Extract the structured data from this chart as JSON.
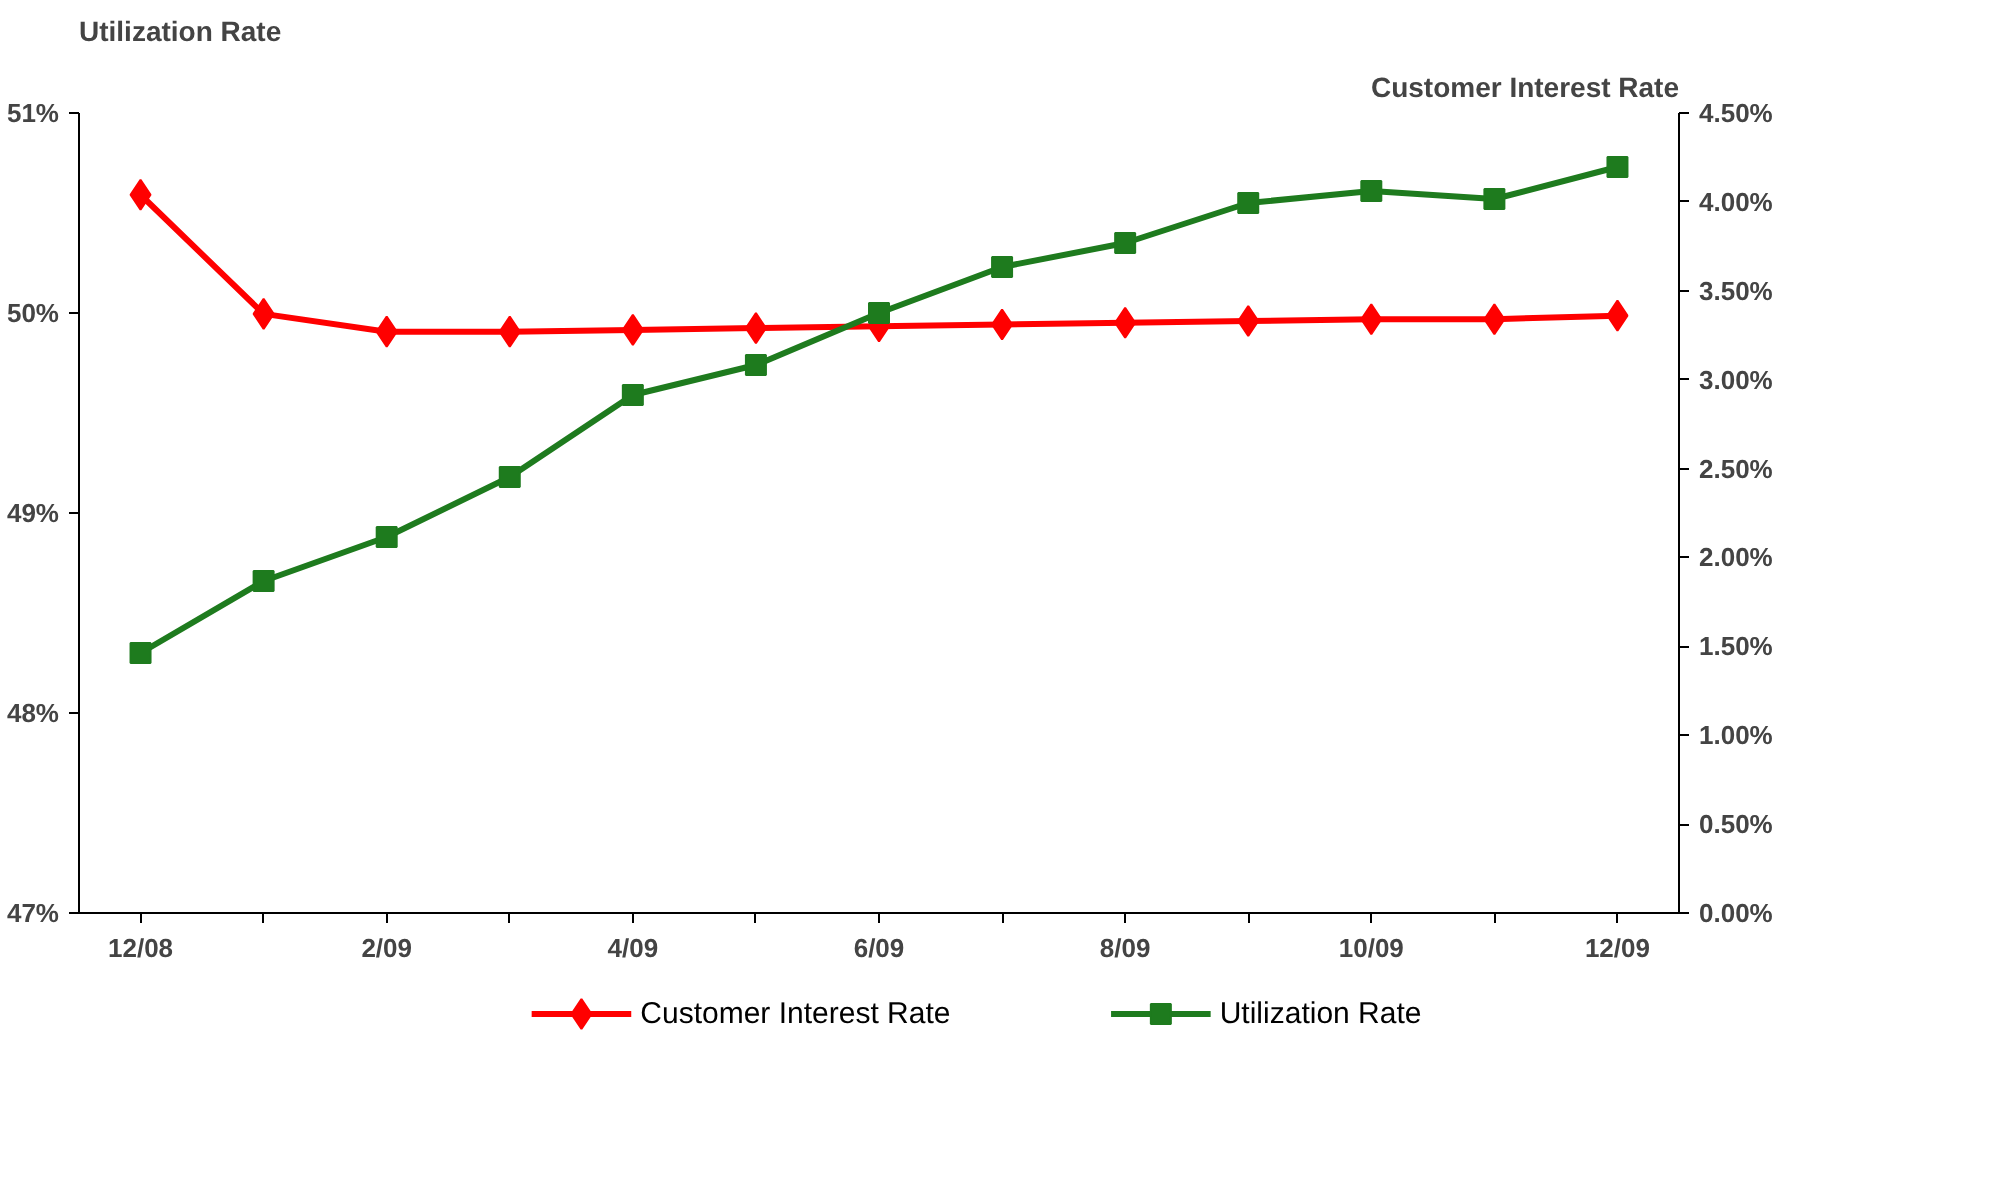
{
  "chart_data": {
    "type": "line",
    "ylabel": "Utilization Rate",
    "y2label": "Customer Interest Rate",
    "categories": [
      "12/08",
      null,
      "2/09",
      null,
      "4/09",
      null,
      "6/09",
      null,
      "8/09",
      null,
      "10/09",
      null,
      "12/09"
    ],
    "series": [
      {
        "name": "Customer Interest Rate",
        "color": "#ff0000",
        "marker": "diamond",
        "axis": "y2",
        "values": [
          4.04,
          3.37,
          3.27,
          3.27,
          3.28,
          3.29,
          3.3,
          3.31,
          3.32,
          3.33,
          3.34,
          3.34,
          3.36
        ]
      },
      {
        "name": "Utilization Rate",
        "color": "#1e7b1e",
        "marker": "square",
        "values": [
          48.3,
          48.66,
          48.88,
          49.18,
          49.59,
          49.74,
          50.0,
          50.23,
          50.35,
          50.55,
          50.61,
          50.57,
          50.73
        ]
      }
    ],
    "ylim": [
      47,
      51
    ],
    "yticks": [
      {
        "value": 47,
        "label": "47%"
      },
      {
        "value": 48,
        "label": "48%"
      },
      {
        "value": 49,
        "label": "49%"
      },
      {
        "value": 50,
        "label": "50%"
      },
      {
        "value": 51,
        "label": "51%"
      }
    ],
    "y2lim": [
      0,
      4.5
    ],
    "y2ticks": [
      {
        "value": 0,
        "label": "0.00%"
      },
      {
        "value": 0.5,
        "label": "0.50%"
      },
      {
        "value": 1,
        "label": "1.00%"
      },
      {
        "value": 1.5,
        "label": "1.50%"
      },
      {
        "value": 2,
        "label": "2.00%"
      },
      {
        "value": 2.5,
        "label": "2.50%"
      },
      {
        "value": 3,
        "label": "3.00%"
      },
      {
        "value": 3.5,
        "label": "3.50%"
      },
      {
        "value": 4,
        "label": "4.00%"
      },
      {
        "value": 4.5,
        "label": "4.50%"
      }
    ],
    "legend": "bottom",
    "grid": false
  }
}
